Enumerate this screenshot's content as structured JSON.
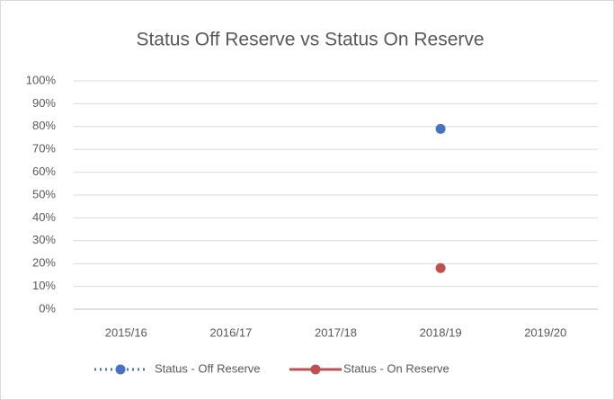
{
  "chart_data": {
    "type": "line",
    "title": "Status Off Reserve vs Status On Reserve",
    "categories": [
      "2015/16",
      "2016/17",
      "2017/18",
      "2018/19",
      "2019/20"
    ],
    "series": [
      {
        "name": "Status - Off Reserve",
        "color": "#4472c4",
        "line_style": "dotted",
        "values": [
          null,
          null,
          null,
          79,
          null
        ]
      },
      {
        "name": "Status - On Reserve",
        "color": "#c0504d",
        "line_style": "solid",
        "values": [
          null,
          null,
          null,
          18,
          null
        ]
      }
    ],
    "ylim": [
      0,
      100
    ],
    "yticks": [
      {
        "value": 0,
        "label": "0%"
      },
      {
        "value": 10,
        "label": "10%"
      },
      {
        "value": 20,
        "label": "20%"
      },
      {
        "value": 30,
        "label": "30%"
      },
      {
        "value": 40,
        "label": "40%"
      },
      {
        "value": 50,
        "label": "50%"
      },
      {
        "value": 60,
        "label": "60%"
      },
      {
        "value": 70,
        "label": "70%"
      },
      {
        "value": 80,
        "label": "80%"
      },
      {
        "value": 90,
        "label": "90%"
      },
      {
        "value": 100,
        "label": "100%"
      }
    ],
    "grid": true,
    "legend": "bottom"
  }
}
